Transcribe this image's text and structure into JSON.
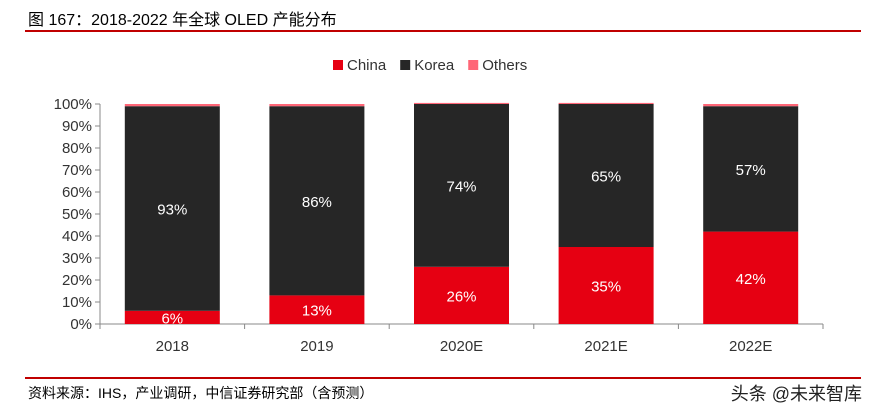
{
  "title": "图 167：2018-2022 年全球 OLED 产能分布",
  "source": "资料来源：IHS，产业调研，中信证券研究部（含预测）",
  "watermark": "头条 @未来智库",
  "chart_data": {
    "type": "bar",
    "stacked": true,
    "categories": [
      "2018",
      "2019",
      "2020E",
      "2021E",
      "2022E"
    ],
    "series": [
      {
        "name": "China",
        "color": "#e60012",
        "values": [
          6,
          13,
          26,
          35,
          42
        ],
        "labels": [
          "6%",
          "13%",
          "26%",
          "35%",
          "42%"
        ]
      },
      {
        "name": "Korea",
        "color": "#262626",
        "values": [
          93,
          86,
          74,
          65,
          57
        ],
        "labels": [
          "93%",
          "86%",
          "74%",
          "65%",
          "57%"
        ]
      },
      {
        "name": "Others",
        "color": "#ff6677",
        "values": [
          1,
          1,
          0.5,
          0.5,
          1
        ]
      }
    ],
    "yticks": [
      "0%",
      "10%",
      "20%",
      "30%",
      "40%",
      "50%",
      "60%",
      "70%",
      "80%",
      "90%",
      "100%"
    ],
    "ylim": [
      0,
      100
    ],
    "legend": "top",
    "grid": false
  }
}
